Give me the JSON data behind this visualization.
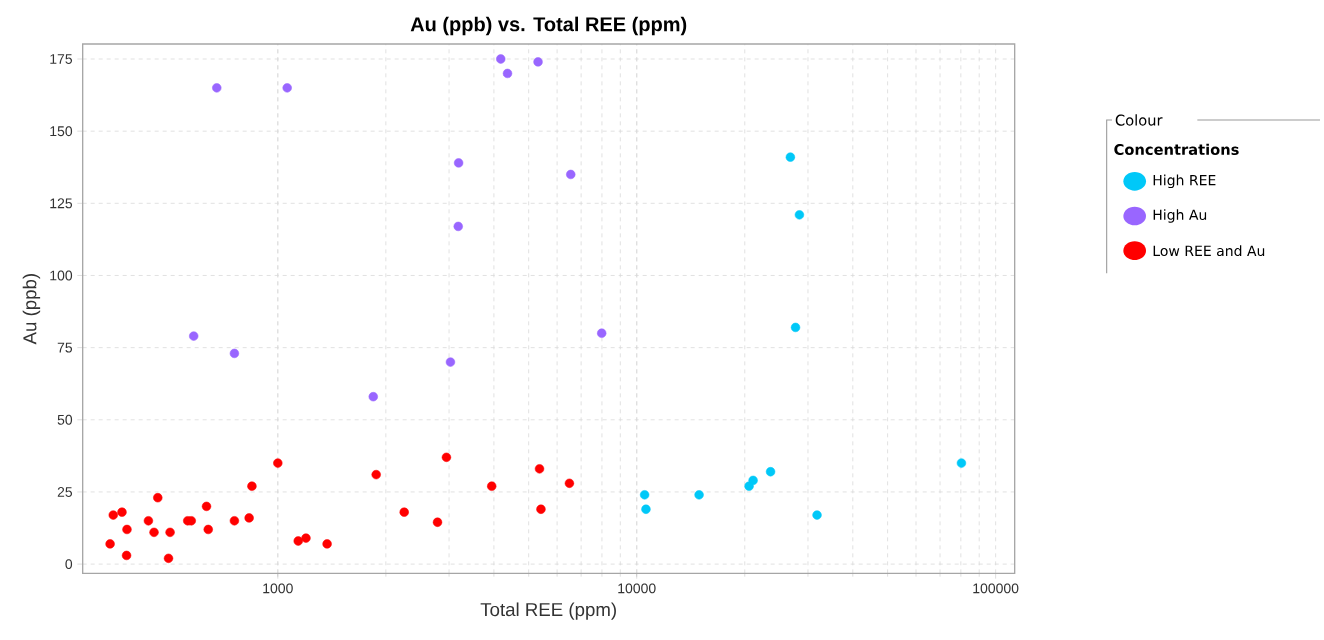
{
  "chart_data": {
    "type": "scatter",
    "title": "Au (ppb) vs. Total REE (ppm)",
    "xlabel": "Total REE (ppm)",
    "ylabel": "Au (ppb)",
    "legend_title": "Colour",
    "annotations": [
      "Concentrations"
    ],
    "log": "x",
    "xlim": [
      286,
      113000
    ],
    "ylim": [
      -3.2,
      180.2
    ],
    "xticks": [
      1000,
      10000,
      100000
    ],
    "yticks": [
      0,
      25,
      50,
      75,
      100,
      125,
      150,
      175
    ],
    "grid": true,
    "legend": "right",
    "marker": "circle",
    "series": [
      {
        "name": "High  REE",
        "color": "#00c8f8",
        "x": [
          26800,
          28400,
          27700,
          10520,
          10610,
          14920,
          20560,
          21100,
          23600,
          31800,
          80300
        ],
        "values": [
          141,
          121,
          82,
          24,
          19,
          24,
          27,
          29,
          32,
          17,
          35
        ]
      },
      {
        "name": "High Au",
        "color": "#9966ff",
        "x": [
          676,
          1062,
          3190,
          3182,
          4180,
          4365,
          5310,
          583,
          757,
          1845,
          3027,
          6550,
          7990
        ],
        "values": [
          165,
          165,
          139,
          117,
          175,
          170,
          174,
          79,
          73,
          58,
          70,
          135,
          80
        ]
      },
      {
        "name": "Low REE and Au",
        "color": "#ff0000",
        "x": [
          341,
          348,
          368,
          380,
          379,
          436,
          452,
          463,
          496,
          501,
          561,
          574,
          633,
          640,
          757,
          832,
          847,
          1000,
          1140,
          1198,
          1372,
          1880,
          2250,
          2786,
          2950,
          3945,
          5360,
          5410,
          6494
        ],
        "values": [
          7,
          17,
          18,
          12,
          3,
          15,
          11,
          23,
          2,
          11,
          15,
          15,
          20,
          12,
          15,
          16,
          27,
          35,
          8,
          9,
          7,
          31,
          18,
          14.5,
          37,
          27,
          33,
          19,
          28
        ]
      }
    ]
  }
}
